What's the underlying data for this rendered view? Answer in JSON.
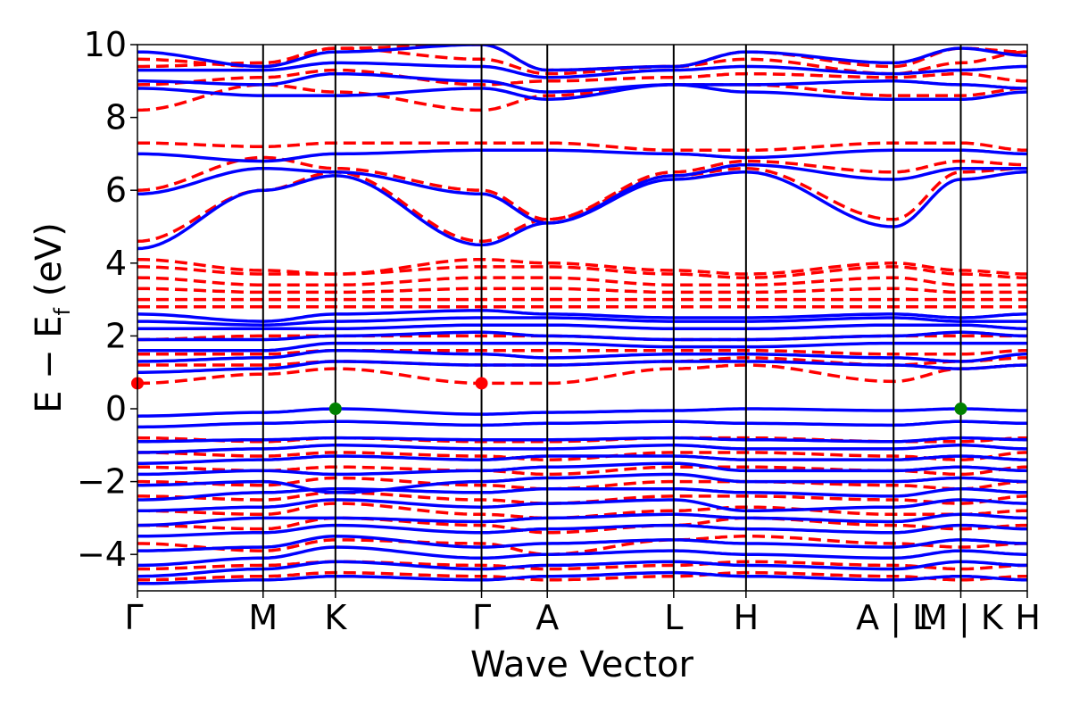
{
  "chart_data": {
    "type": "line",
    "xlabel": "Wave Vector",
    "ylabel_main": "E − E",
    "ylabel_sub": "f",
    "ylabel_unit": " (eV)",
    "ylim": [
      -5,
      10
    ],
    "yticks": [
      -4,
      -2,
      0,
      2,
      4,
      6,
      8,
      10
    ],
    "ytick_labels": [
      "−4",
      "−2",
      "0",
      "2",
      "4",
      "6",
      "8",
      "10"
    ],
    "kpath_positions": [
      0,
      1.72,
      2.71,
      4.71,
      5.61,
      7.34,
      8.33,
      10.35,
      11.27,
      12.18
    ],
    "kpath_labels": [
      "Γ",
      "M",
      "K",
      "Γ",
      "A",
      "L",
      "H",
      "A | L",
      "M | K",
      "H"
    ],
    "grid": false,
    "legend": "none",
    "colors": {
      "spin_up": "#0000ff",
      "spin_down": "#ff0000",
      "vbm": "#008000",
      "cbm": "#ff0000",
      "kline": "#000000"
    },
    "series": [
      {
        "style": "solid",
        "bands": [
          [
            -4.8,
            -4.7,
            -4.6,
            -4.7,
            -4.6,
            -4.5,
            -4.6,
            -4.7,
            -4.6,
            -4.7
          ],
          [
            -4.6,
            -4.4,
            -4.2,
            -4.4,
            -4.3,
            -4.2,
            -4.3,
            -4.4,
            -4.2,
            -4.3
          ],
          [
            -4.3,
            -4.1,
            -3.8,
            -4.1,
            -4.0,
            -3.9,
            -4.0,
            -4.1,
            -3.9,
            -4.0
          ],
          [
            -3.9,
            -3.8,
            -3.5,
            -3.8,
            -3.7,
            -3.6,
            -3.7,
            -3.8,
            -3.6,
            -3.7
          ],
          [
            -3.5,
            -3.4,
            -3.2,
            -3.4,
            -3.3,
            -3.2,
            -3.3,
            -3.4,
            -3.2,
            -3.3
          ],
          [
            -3.2,
            -3.0,
            -3.0,
            -3.1,
            -3.0,
            -2.9,
            -3.0,
            -3.1,
            -2.9,
            -3.0
          ],
          [
            -2.8,
            -2.7,
            -2.5,
            -2.7,
            -2.6,
            -2.5,
            -2.8,
            -2.7,
            -2.5,
            -2.6
          ],
          [
            -2.5,
            -2.3,
            -2.2,
            -2.3,
            -2.2,
            -2.2,
            -2.3,
            -2.4,
            -2.2,
            -2.3
          ],
          [
            -2.1,
            -2.0,
            -2.3,
            -2.0,
            -1.9,
            -1.8,
            -2.0,
            -2.0,
            -1.9,
            -2.0
          ],
          [
            -1.8,
            -1.7,
            -1.8,
            -1.7,
            -1.6,
            -1.5,
            -1.7,
            -1.7,
            -1.6,
            -1.7
          ],
          [
            -1.5,
            -1.4,
            -1.3,
            -1.4,
            -1.3,
            -1.3,
            -1.4,
            -1.4,
            -1.3,
            -1.4
          ],
          [
            -1.2,
            -1.1,
            -1.0,
            -1.1,
            -1.1,
            -1.0,
            -1.1,
            -1.1,
            -1.0,
            -1.1
          ],
          [
            -0.9,
            -0.85,
            -0.8,
            -0.85,
            -0.85,
            -0.8,
            -0.85,
            -0.9,
            -0.8,
            -0.85
          ],
          [
            -0.5,
            -0.4,
            -0.35,
            -0.45,
            -0.4,
            -0.35,
            -0.4,
            -0.45,
            -0.35,
            -0.4
          ],
          [
            -0.2,
            -0.1,
            0.0,
            -0.15,
            -0.1,
            -0.05,
            0.0,
            -0.05,
            0.0,
            -0.05
          ],
          [
            1.0,
            1.1,
            1.3,
            1.2,
            1.2,
            1.3,
            1.3,
            1.2,
            1.1,
            1.2
          ],
          [
            1.3,
            1.4,
            1.6,
            1.5,
            1.4,
            1.5,
            1.5,
            1.4,
            1.3,
            1.5
          ],
          [
            1.6,
            1.6,
            1.8,
            1.8,
            1.8,
            1.7,
            1.7,
            1.8,
            1.8,
            1.8
          ],
          [
            1.9,
            1.9,
            2.0,
            2.1,
            2.0,
            1.9,
            1.9,
            2.0,
            2.1,
            2.0
          ],
          [
            2.2,
            2.2,
            2.2,
            2.3,
            2.3,
            2.2,
            2.2,
            2.3,
            2.3,
            2.2
          ],
          [
            2.4,
            2.3,
            2.4,
            2.5,
            2.5,
            2.4,
            2.4,
            2.5,
            2.4,
            2.4
          ],
          [
            2.6,
            2.4,
            2.6,
            2.7,
            2.6,
            2.5,
            2.5,
            2.6,
            2.5,
            2.6
          ],
          [
            4.4,
            6.0,
            6.4,
            4.5,
            5.1,
            6.3,
            6.5,
            5.0,
            6.3,
            6.5
          ],
          [
            5.9,
            6.6,
            6.5,
            5.9,
            5.1,
            6.4,
            6.7,
            6.3,
            6.6,
            6.6
          ],
          [
            7.0,
            6.8,
            7.0,
            7.1,
            7.1,
            7.0,
            6.9,
            7.1,
            7.1,
            7.0
          ],
          [
            8.8,
            8.6,
            8.6,
            8.8,
            8.5,
            8.9,
            8.7,
            8.5,
            8.5,
            8.7
          ],
          [
            9.0,
            8.9,
            9.2,
            9.0,
            8.7,
            8.9,
            8.9,
            9.0,
            8.9,
            8.8
          ],
          [
            9.3,
            9.3,
            9.5,
            9.4,
            9.1,
            9.3,
            9.4,
            9.2,
            9.3,
            9.4
          ],
          [
            9.8,
            9.4,
            9.8,
            10.0,
            9.3,
            9.4,
            9.8,
            9.5,
            9.9,
            9.7
          ]
        ]
      },
      {
        "style": "dashed",
        "bands": [
          [
            -4.7,
            -4.6,
            -4.5,
            -4.6,
            -4.7,
            -4.6,
            -4.5,
            -4.6,
            -4.7,
            -4.6
          ],
          [
            -4.4,
            -4.3,
            -4.2,
            -4.3,
            -4.4,
            -4.3,
            -4.2,
            -4.3,
            -4.4,
            -4.3
          ],
          [
            -3.7,
            -3.9,
            -3.6,
            -3.7,
            -4.0,
            -3.6,
            -3.5,
            -3.7,
            -3.8,
            -3.7
          ],
          [
            -3.2,
            -3.3,
            -3.0,
            -3.2,
            -3.4,
            -3.2,
            -3.0,
            -3.2,
            -3.3,
            -3.2
          ],
          [
            -2.8,
            -2.9,
            -2.6,
            -2.9,
            -3.0,
            -2.8,
            -2.7,
            -2.9,
            -2.9,
            -2.8
          ],
          [
            -2.4,
            -2.5,
            -2.3,
            -2.5,
            -2.6,
            -2.4,
            -2.4,
            -2.5,
            -2.6,
            -2.4
          ],
          [
            -2.0,
            -2.1,
            -1.9,
            -2.1,
            -2.2,
            -2.0,
            -2.0,
            -2.1,
            -2.2,
            -2.0
          ],
          [
            -1.6,
            -1.7,
            -1.6,
            -1.7,
            -1.8,
            -1.6,
            -1.6,
            -1.7,
            -1.8,
            -1.6
          ],
          [
            -1.2,
            -1.3,
            -1.2,
            -1.3,
            -1.4,
            -1.2,
            -1.2,
            -1.3,
            -1.4,
            -1.2
          ],
          [
            -0.8,
            -0.9,
            -0.8,
            -0.9,
            -0.9,
            -0.8,
            -0.8,
            -0.9,
            -0.9,
            -0.8
          ],
          [
            0.7,
            0.95,
            1.1,
            0.7,
            0.7,
            1.1,
            1.2,
            0.75,
            1.1,
            1.2
          ],
          [
            1.2,
            1.2,
            1.3,
            1.2,
            1.2,
            1.3,
            1.4,
            1.2,
            1.3,
            1.4
          ],
          [
            1.5,
            1.5,
            1.6,
            1.6,
            1.6,
            1.6,
            1.6,
            1.5,
            1.5,
            1.6
          ],
          [
            1.9,
            2.0,
            2.0,
            2.0,
            2.0,
            1.9,
            1.9,
            2.0,
            2.0,
            2.0
          ],
          [
            2.8,
            2.8,
            2.8,
            2.8,
            2.8,
            2.8,
            2.8,
            2.8,
            2.8,
            2.8
          ],
          [
            3.0,
            3.0,
            3.0,
            3.0,
            3.0,
            3.0,
            3.0,
            3.0,
            3.0,
            3.0
          ],
          [
            3.3,
            3.2,
            3.2,
            3.3,
            3.3,
            3.2,
            3.2,
            3.3,
            3.2,
            3.2
          ],
          [
            3.6,
            3.4,
            3.4,
            3.6,
            3.6,
            3.4,
            3.4,
            3.6,
            3.4,
            3.4
          ],
          [
            3.9,
            3.7,
            3.7,
            3.9,
            3.9,
            3.7,
            3.6,
            3.9,
            3.7,
            3.6
          ],
          [
            4.1,
            3.8,
            3.7,
            4.1,
            4.0,
            3.8,
            3.7,
            4.0,
            3.8,
            3.7
          ],
          [
            4.6,
            6.0,
            6.5,
            4.6,
            5.2,
            6.4,
            6.6,
            5.2,
            6.5,
            6.6
          ],
          [
            6.0,
            6.9,
            6.6,
            6.0,
            5.2,
            6.5,
            6.8,
            6.5,
            6.8,
            6.7
          ],
          [
            7.3,
            7.2,
            7.3,
            7.3,
            7.3,
            7.1,
            7.1,
            7.3,
            7.3,
            7.1
          ],
          [
            8.2,
            8.9,
            8.7,
            8.2,
            8.6,
            8.9,
            8.9,
            8.6,
            8.6,
            8.8
          ],
          [
            8.9,
            9.1,
            9.3,
            8.9,
            9.0,
            9.1,
            9.2,
            9.1,
            9.2,
            9.0
          ],
          [
            9.4,
            9.5,
            9.9,
            9.6,
            9.2,
            9.4,
            9.6,
            9.2,
            9.5,
            9.8
          ],
          [
            9.6,
            9.4,
            9.9,
            10.0,
            9.3,
            9.4,
            9.8,
            9.4,
            9.9,
            9.8
          ]
        ]
      }
    ],
    "vbm_points": [
      {
        "x": 2.71,
        "y": 0.0
      },
      {
        "x": 11.27,
        "y": 0.0
      }
    ],
    "cbm_points": [
      {
        "x": 0,
        "y": 0.7
      },
      {
        "x": 4.71,
        "y": 0.7
      }
    ]
  }
}
